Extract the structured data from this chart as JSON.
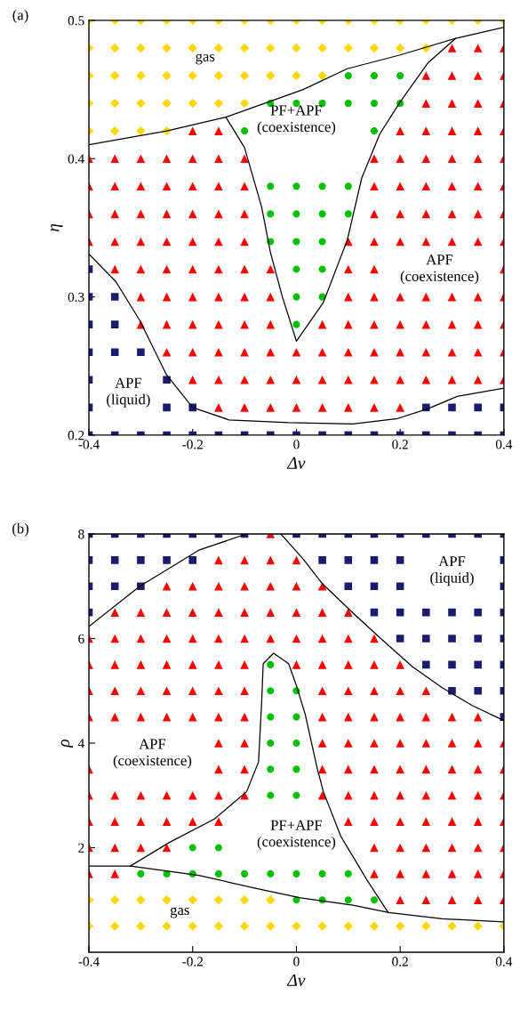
{
  "chart_data": [
    {
      "type": "scatter",
      "title": "(a)",
      "xlabel": "Δv",
      "ylabel": "η",
      "xlim": [
        -0.4,
        0.4
      ],
      "ylim": [
        0.2,
        0.5
      ],
      "xticks": [
        -0.4,
        -0.2,
        0,
        0.2,
        0.4
      ],
      "yticks": [
        0.2,
        0.3,
        0.4,
        0.5
      ],
      "series": [
        {
          "marker": "diamond",
          "color": "#ffd700",
          "x": [
            -0.4,
            -0.35,
            -0.3,
            -0.25,
            -0.2,
            -0.15,
            -0.1,
            -0.05,
            0,
            0.05,
            0.1,
            0.15,
            0.2,
            0.25,
            0.3,
            0.35,
            0.4,
            -0.4,
            -0.35,
            -0.3,
            -0.25,
            -0.2,
            -0.15,
            -0.1,
            -0.05,
            0,
            0.05,
            0.1,
            0.15,
            0.2,
            0.25,
            -0.4,
            -0.35,
            -0.3,
            -0.25,
            -0.2,
            -0.15,
            -0.1,
            -0.05,
            0,
            0.05,
            -0.4,
            -0.35,
            -0.3,
            -0.25,
            -0.2,
            -0.15,
            -0.1,
            -0.4,
            -0.35,
            -0.3,
            -0.25
          ],
          "values": [
            0.5,
            0.5,
            0.5,
            0.5,
            0.5,
            0.5,
            0.5,
            0.5,
            0.5,
            0.5,
            0.5,
            0.5,
            0.5,
            0.5,
            0.5,
            0.5,
            0.5,
            0.48,
            0.48,
            0.48,
            0.48,
            0.48,
            0.48,
            0.48,
            0.48,
            0.48,
            0.48,
            0.48,
            0.48,
            0.48,
            0.48,
            0.46,
            0.46,
            0.46,
            0.46,
            0.46,
            0.46,
            0.46,
            0.46,
            0.46,
            0.46,
            0.44,
            0.44,
            0.44,
            0.44,
            0.44,
            0.44,
            0.44,
            0.42,
            0.42,
            0.42,
            0.42
          ]
        },
        {
          "marker": "triangle",
          "color": "#ff0000",
          "x": [
            0.3,
            0.35,
            0.4,
            0.25,
            0.3,
            0.35,
            0.4,
            0.25,
            0.3,
            0.35,
            0.4,
            -0.2,
            -0.15,
            0.2,
            0.25,
            0.3,
            0.35,
            0.4,
            -0.4,
            -0.35,
            -0.3,
            -0.25,
            -0.2,
            -0.15,
            -0.1,
            0.15,
            0.2,
            0.25,
            0.3,
            0.35,
            0.4,
            -0.4,
            -0.35,
            -0.3,
            -0.25,
            -0.2,
            -0.15,
            -0.1,
            0.15,
            0.2,
            0.25,
            0.3,
            0.35,
            0.4,
            -0.4,
            -0.35,
            -0.3,
            -0.25,
            -0.2,
            -0.15,
            -0.1,
            0.15,
            0.2,
            0.25,
            0.3,
            0.35,
            0.4,
            -0.4,
            -0.35,
            -0.3,
            -0.25,
            -0.2,
            -0.15,
            -0.1,
            0.1,
            0.15,
            0.2,
            0.25,
            0.3,
            0.35,
            0.4,
            -0.35,
            -0.3,
            -0.25,
            -0.2,
            -0.15,
            -0.1,
            -0.05,
            0.1,
            0.15,
            0.4,
            -0.3,
            -0.25,
            -0.2,
            -0.15,
            -0.1,
            -0.05,
            0.1,
            0.15,
            0.2,
            0.25,
            0.3,
            0.35,
            0.4,
            -0.3,
            -0.25,
            -0.2,
            -0.15,
            -0.1,
            -0.05,
            0.05,
            0.1,
            0.15,
            0.2,
            0.25,
            0.3,
            0.35,
            0.4,
            -0.25,
            -0.2,
            -0.15,
            -0.1,
            -0.05,
            0,
            0.05,
            0.1,
            0.15,
            0.2,
            0.25,
            0.3,
            0.35,
            0.4,
            -0.2,
            -0.15,
            -0.1,
            -0.05,
            0,
            0.05,
            0.1,
            0.15,
            0.2,
            0.25,
            0.3,
            0.35,
            0.4,
            -0.15,
            -0.1,
            -0.05,
            0,
            0.05,
            0.1,
            0.15,
            0.2
          ],
          "values": [
            0.48,
            0.48,
            0.48,
            0.46,
            0.46,
            0.46,
            0.46,
            0.44,
            0.44,
            0.44,
            0.44,
            0.42,
            0.42,
            0.42,
            0.42,
            0.42,
            0.42,
            0.42,
            0.4,
            0.4,
            0.4,
            0.4,
            0.4,
            0.4,
            0.4,
            0.4,
            0.4,
            0.4,
            0.4,
            0.4,
            0.4,
            0.38,
            0.38,
            0.38,
            0.38,
            0.38,
            0.38,
            0.38,
            0.38,
            0.38,
            0.38,
            0.38,
            0.38,
            0.38,
            0.36,
            0.36,
            0.36,
            0.36,
            0.36,
            0.36,
            0.36,
            0.36,
            0.36,
            0.36,
            0.36,
            0.36,
            0.36,
            0.34,
            0.34,
            0.34,
            0.34,
            0.34,
            0.34,
            0.34,
            0.34,
            0.34,
            0.34,
            0.34,
            0.34,
            0.34,
            0.34,
            0.32,
            0.32,
            0.32,
            0.32,
            0.32,
            0.32,
            0.32,
            0.32,
            0.32,
            0.32,
            0.3,
            0.3,
            0.3,
            0.3,
            0.3,
            0.3,
            0.3,
            0.3,
            0.3,
            0.3,
            0.3,
            0.3,
            0.3,
            0.28,
            0.28,
            0.28,
            0.28,
            0.28,
            0.28,
            0.28,
            0.28,
            0.28,
            0.28,
            0.28,
            0.28,
            0.28,
            0.28,
            0.26,
            0.26,
            0.26,
            0.26,
            0.26,
            0.26,
            0.26,
            0.26,
            0.26,
            0.26,
            0.26,
            0.26,
            0.26,
            0.26,
            0.24,
            0.24,
            0.24,
            0.24,
            0.24,
            0.24,
            0.24,
            0.24,
            0.24,
            0.24,
            0.24,
            0.24,
            0.24,
            0.22,
            0.22,
            0.22,
            0.22,
            0.22,
            0.22,
            0.22,
            0.22
          ]
        },
        {
          "marker": "circle",
          "color": "#00c000",
          "x": [
            0.1,
            0.15,
            0.2,
            -0.05,
            0,
            0.05,
            0.1,
            0.15,
            0.2,
            -0.1,
            0.15,
            -0.05,
            0,
            0.05,
            0.1,
            -0.05,
            0,
            0.05,
            0.1,
            -0.05,
            0,
            0.05,
            0,
            0.05,
            0,
            0.05,
            0
          ],
          "values": [
            0.46,
            0.46,
            0.46,
            0.44,
            0.44,
            0.44,
            0.44,
            0.44,
            0.44,
            0.42,
            0.42,
            0.38,
            0.38,
            0.38,
            0.38,
            0.36,
            0.36,
            0.36,
            0.36,
            0.34,
            0.34,
            0.34,
            0.32,
            0.32,
            0.3,
            0.3,
            0.28
          ]
        },
        {
          "marker": "square",
          "color": "#1a1a6e",
          "x": [
            -0.4,
            -0.4,
            -0.35,
            -0.4,
            -0.35,
            -0.4,
            -0.35,
            -0.3,
            -0.4,
            -0.25,
            -0.4,
            -0.25,
            -0.2,
            0.25,
            0.3,
            0.35,
            0.4,
            -0.4,
            -0.35,
            -0.3,
            -0.25,
            -0.2,
            -0.15,
            -0.1,
            -0.05,
            0,
            0.05,
            0.1,
            0.15,
            0.2,
            0.25,
            0.3,
            0.35,
            0.4
          ],
          "values": [
            0.32,
            0.3,
            0.3,
            0.28,
            0.28,
            0.26,
            0.26,
            0.26,
            0.24,
            0.24,
            0.22,
            0.22,
            0.22,
            0.22,
            0.22,
            0.22,
            0.22,
            0.2,
            0.2,
            0.2,
            0.2,
            0.2,
            0.2,
            0.2,
            0.2,
            0.2,
            0.2,
            0.2,
            0.2,
            0.2,
            0.2,
            0.2,
            0.2,
            0.2
          ]
        },
        {
          "type": "line",
          "color": "#000000",
          "x": [
            -0.4,
            -0.25,
            -0.136,
            0.013,
            0.098,
            0.2,
            0.307,
            0.4
          ],
          "values": [
            0.41,
            0.42,
            0.43,
            0.45,
            0.465,
            0.475,
            0.487,
            0.495
          ]
        },
        {
          "type": "line",
          "color": "#000000",
          "x": [
            -0.136,
            -0.1,
            -0.067,
            -0.05,
            -0.027,
            0,
            0.052,
            0.098,
            0.126,
            0.161,
            0.2,
            0.253,
            0.307
          ],
          "values": [
            0.43,
            0.408,
            0.365,
            0.332,
            0.3,
            0.268,
            0.296,
            0.341,
            0.386,
            0.418,
            0.441,
            0.469,
            0.487
          ]
        },
        {
          "type": "line",
          "color": "#000000",
          "x": [
            -0.4,
            -0.348,
            -0.302,
            -0.251,
            -0.2,
            -0.13,
            -0.015,
            0.109,
            0.195,
            0.253,
            0.31,
            0.4
          ],
          "values": [
            0.331,
            0.311,
            0.283,
            0.244,
            0.22,
            0.211,
            0.209,
            0.208,
            0.212,
            0.219,
            0.228,
            0.234
          ]
        }
      ],
      "annotations": [
        "gas",
        "PF+APF\n(coexistence)",
        "APF\n(coexistence)",
        "APF\n(liquid)"
      ]
    },
    {
      "type": "scatter",
      "title": "(b)",
      "xlabel": "Δv",
      "ylabel": "ρ",
      "xlim": [
        -0.4,
        0.4
      ],
      "ylim": [
        0,
        8
      ],
      "xticks": [
        -0.4,
        -0.2,
        0,
        0.2,
        0.4
      ],
      "yticks": [
        2,
        4,
        6,
        8
      ],
      "series": [
        {
          "marker": "square",
          "color": "#1a1a6e",
          "x": [
            -0.4,
            -0.35,
            -0.3,
            -0.25,
            -0.2,
            -0.15,
            -0.1,
            0,
            0.05,
            0.1,
            0.15,
            0.2,
            0.25,
            0.3,
            0.35,
            0.4,
            -0.4,
            -0.35,
            -0.3,
            -0.25,
            -0.2,
            0.05,
            0.1,
            0.15,
            0.2,
            0.4,
            -0.4,
            -0.35,
            -0.3,
            0.1,
            0.15,
            0.2,
            0.4,
            -0.4,
            0.15,
            0.2,
            0.25,
            0.3,
            0.35,
            0.4,
            0.2,
            0.25,
            0.3,
            0.35,
            0.4,
            0.25,
            0.3,
            0.35,
            0.4,
            0.3,
            0.35,
            0.4,
            0.4
          ],
          "values": [
            8,
            8,
            8,
            8,
            8,
            8,
            8,
            8,
            8,
            8,
            8,
            8,
            8,
            8,
            8,
            8,
            7.5,
            7.5,
            7.5,
            7.5,
            7.5,
            7.5,
            7.5,
            7.5,
            7.5,
            7.5,
            7,
            7,
            7,
            7,
            7,
            7,
            7,
            6.5,
            6.5,
            6.5,
            6.5,
            6.5,
            6.5,
            6.5,
            6,
            6,
            6,
            6,
            6,
            5.5,
            5.5,
            5.5,
            5.5,
            5,
            5,
            5,
            4.5
          ]
        },
        {
          "marker": "triangle",
          "color": "#ff0000",
          "x": [
            -0.05,
            -0.15,
            -0.1,
            -0.05,
            0,
            -0.25,
            -0.2,
            -0.15,
            -0.1,
            -0.05,
            0,
            0.05,
            -0.35,
            -0.3,
            -0.25,
            -0.2,
            -0.15,
            -0.1,
            -0.05,
            0,
            0.05,
            0.1,
            -0.4,
            -0.35,
            -0.3,
            -0.25,
            -0.2,
            -0.15,
            -0.1,
            -0.05,
            0,
            0.05,
            0.1,
            0.15,
            -0.4,
            -0.35,
            -0.3,
            -0.25,
            -0.2,
            -0.15,
            -0.1,
            0,
            0.05,
            0.1,
            0.15,
            0.2,
            -0.4,
            -0.35,
            -0.3,
            -0.25,
            -0.2,
            -0.15,
            -0.1,
            0.05,
            0.1,
            0.15,
            0.2,
            0.25,
            -0.4,
            -0.35,
            -0.3,
            -0.25,
            -0.2,
            -0.15,
            -0.1,
            0.05,
            0.1,
            0.15,
            0.2,
            0.25,
            0.3,
            0.35,
            -0.15,
            -0.1,
            0.05,
            0.1,
            0.15,
            0.2,
            0.25,
            0.3,
            0.35,
            0.4,
            -0.4,
            -0.15,
            -0.1,
            0.05,
            0.1,
            0.15,
            0.2,
            0.25,
            0.3,
            0.35,
            0.4,
            -0.4,
            -0.35,
            -0.3,
            -0.25,
            -0.2,
            -0.15,
            -0.1,
            0.05,
            0.1,
            0.15,
            0.2,
            0.25,
            0.3,
            0.35,
            0.4,
            -0.4,
            -0.35,
            -0.3,
            -0.25,
            -0.2,
            -0.15,
            0.1,
            0.15,
            0.2,
            0.25,
            0.3,
            0.35,
            0.4,
            -0.4,
            -0.35,
            -0.3,
            -0.25,
            0.15,
            0.2,
            0.25,
            0.3,
            0.35,
            0.4,
            -0.4,
            -0.35,
            0.15,
            0.2,
            0.25,
            0.3,
            0.35,
            0.4,
            0.2,
            0.25,
            0.3,
            0.35,
            0.4
          ],
          "values": [
            8,
            7.5,
            7.5,
            7.5,
            7.5,
            7,
            7,
            7,
            7,
            7,
            7,
            7,
            6.5,
            6.5,
            6.5,
            6.5,
            6.5,
            6.5,
            6.5,
            6.5,
            6.5,
            6.5,
            6,
            6,
            6,
            6,
            6,
            6,
            6,
            6,
            6,
            6,
            6,
            6,
            5.5,
            5.5,
            5.5,
            5.5,
            5.5,
            5.5,
            5.5,
            5.5,
            5.5,
            5.5,
            5.5,
            5.5,
            5,
            5,
            5,
            5,
            5,
            5,
            5,
            5,
            5,
            5,
            5,
            5,
            4.5,
            4.5,
            4.5,
            4.5,
            4.5,
            4.5,
            4.5,
            4.5,
            4.5,
            4.5,
            4.5,
            4.5,
            4.5,
            4.5,
            4,
            4,
            4,
            4,
            4,
            4,
            4,
            4,
            4,
            4,
            3.5,
            3.5,
            3.5,
            3.5,
            3.5,
            3.5,
            3.5,
            3.5,
            3.5,
            3.5,
            3.5,
            3,
            3,
            3,
            3,
            3,
            3,
            3,
            3,
            3,
            3,
            3,
            3,
            3,
            3,
            3,
            2.5,
            2.5,
            2.5,
            2.5,
            2.5,
            2.5,
            2.5,
            2.5,
            2.5,
            2.5,
            2.5,
            2.5,
            2.5,
            2,
            2,
            2,
            2,
            2,
            2,
            2,
            2,
            2,
            2,
            1.5,
            1.5,
            1.5,
            1.5,
            1.5,
            1.5,
            1.5,
            1.5,
            1,
            1,
            1,
            1,
            1
          ]
        },
        {
          "marker": "circle",
          "color": "#00c000",
          "x": [
            -0.05,
            -0.05,
            0,
            -0.05,
            0,
            -0.05,
            0,
            -0.05,
            0,
            -0.05,
            0,
            -0.2,
            -0.15,
            -0.3,
            -0.25,
            -0.2,
            -0.15,
            -0.1,
            -0.05,
            0,
            0.05,
            0.1,
            0,
            0.05,
            0.1,
            0.15
          ],
          "values": [
            5.5,
            5,
            5,
            4.5,
            4.5,
            4,
            4,
            3.5,
            3.5,
            3,
            3,
            2,
            2,
            1.5,
            1.5,
            1.5,
            1.5,
            1.5,
            1.5,
            1.5,
            1.5,
            1.5,
            1,
            1,
            1,
            1
          ]
        },
        {
          "marker": "diamond",
          "color": "#ffd700",
          "x": [
            -0.4,
            -0.35,
            -0.3,
            -0.25,
            -0.2,
            -0.15,
            -0.1,
            -0.05,
            -0.4,
            -0.35,
            -0.3,
            -0.25,
            -0.2,
            -0.15,
            -0.1,
            -0.05,
            0,
            0.05,
            0.1,
            0.15,
            0.2,
            0.25,
            0.3,
            0.35,
            0.4
          ],
          "values": [
            1,
            1,
            1,
            1,
            1,
            1,
            1,
            1,
            0.5,
            0.5,
            0.5,
            0.5,
            0.5,
            0.5,
            0.5,
            0.5,
            0.5,
            0.5,
            0.5,
            0.5,
            0.5,
            0.5,
            0.5,
            0.5,
            0.5
          ]
        },
        {
          "type": "line",
          "color": "#000000",
          "x": [
            -0.4,
            -0.302,
            -0.188,
            -0.096
          ],
          "values": [
            6.23,
            7.0,
            7.69,
            8.0
          ]
        },
        {
          "type": "line",
          "color": "#000000",
          "x": [
            -0.03,
            0.013,
            0.049,
            0.109,
            0.166,
            0.224,
            0.281,
            0.339,
            0.4
          ],
          "values": [
            8.0,
            7.52,
            7.06,
            6.49,
            5.97,
            5.46,
            5.06,
            4.72,
            4.43
          ]
        },
        {
          "type": "line",
          "color": "#000000",
          "x": [
            -0.4,
            -0.32,
            -0.188,
            -0.073,
            0.008,
            0.109,
            0.178,
            0.281,
            0.4
          ],
          "values": [
            1.65,
            1.65,
            1.47,
            1.21,
            1.04,
            0.9,
            0.76,
            0.64,
            0.58
          ]
        },
        {
          "type": "line",
          "color": "#000000",
          "x": [
            -0.32,
            -0.245,
            -0.158,
            -0.096,
            -0.073,
            -0.067,
            -0.064,
            -0.044,
            -0.015,
            0.0,
            0.017,
            0.04,
            0.052,
            0.086,
            0.138,
            0.177
          ],
          "values": [
            1.65,
            2.1,
            2.55,
            3.07,
            3.64,
            4.78,
            5.52,
            5.72,
            5.52,
            5.1,
            4.55,
            3.52,
            3.07,
            2.21,
            1.35,
            0.76
          ]
        }
      ],
      "annotations": [
        "APF\n(liquid)",
        "APF\n(coexistence)",
        "PF+APF\n(coexistence)",
        "gas"
      ]
    }
  ]
}
